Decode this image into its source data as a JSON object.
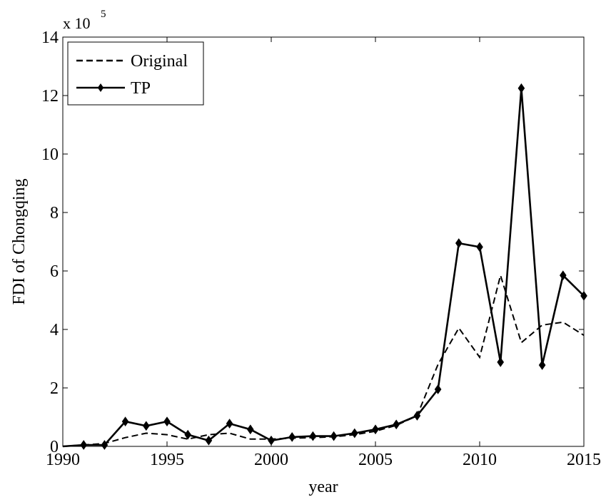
{
  "chart_data": {
    "type": "line",
    "x_label": "year",
    "y_label": "FDI of Chongqing",
    "y_multiplier": "x 10",
    "y_multiplier_exponent": "5",
    "x": [
      1990,
      1991,
      1992,
      1993,
      1994,
      1995,
      1996,
      1997,
      1998,
      1999,
      2000,
      2001,
      2002,
      2003,
      2004,
      2005,
      2006,
      2007,
      2008,
      2009,
      2010,
      2011,
      2012,
      2013,
      2014,
      2015
    ],
    "series": [
      {
        "name": "Original",
        "color": "#000000",
        "style": "dashed",
        "values": [
          0,
          0.05,
          0.1,
          0.3,
          0.45,
          0.4,
          0.25,
          0.4,
          0.45,
          0.25,
          0.25,
          0.28,
          0.3,
          0.33,
          0.4,
          0.52,
          0.72,
          1.05,
          2.8,
          4.05,
          3.05,
          5.85,
          3.55,
          4.15,
          4.25,
          3.8
        ]
      },
      {
        "name": "TP",
        "color": "#000000",
        "style": "solid-diamond",
        "values": [
          0,
          0.05,
          0.05,
          0.85,
          0.7,
          0.85,
          0.4,
          0.2,
          0.78,
          0.58,
          0.2,
          0.32,
          0.35,
          0.35,
          0.45,
          0.58,
          0.75,
          1.05,
          1.95,
          6.95,
          6.82,
          2.88,
          12.25,
          2.78,
          5.85,
          5.15
        ]
      }
    ],
    "xlim": [
      1990,
      2015
    ],
    "xticks": [
      1990,
      1995,
      2000,
      2005,
      2010,
      2015
    ],
    "ylim": [
      0,
      14
    ],
    "yticks": [
      0,
      2,
      4,
      6,
      8,
      10,
      12,
      14
    ],
    "grid": false,
    "legend": "upper-left"
  }
}
